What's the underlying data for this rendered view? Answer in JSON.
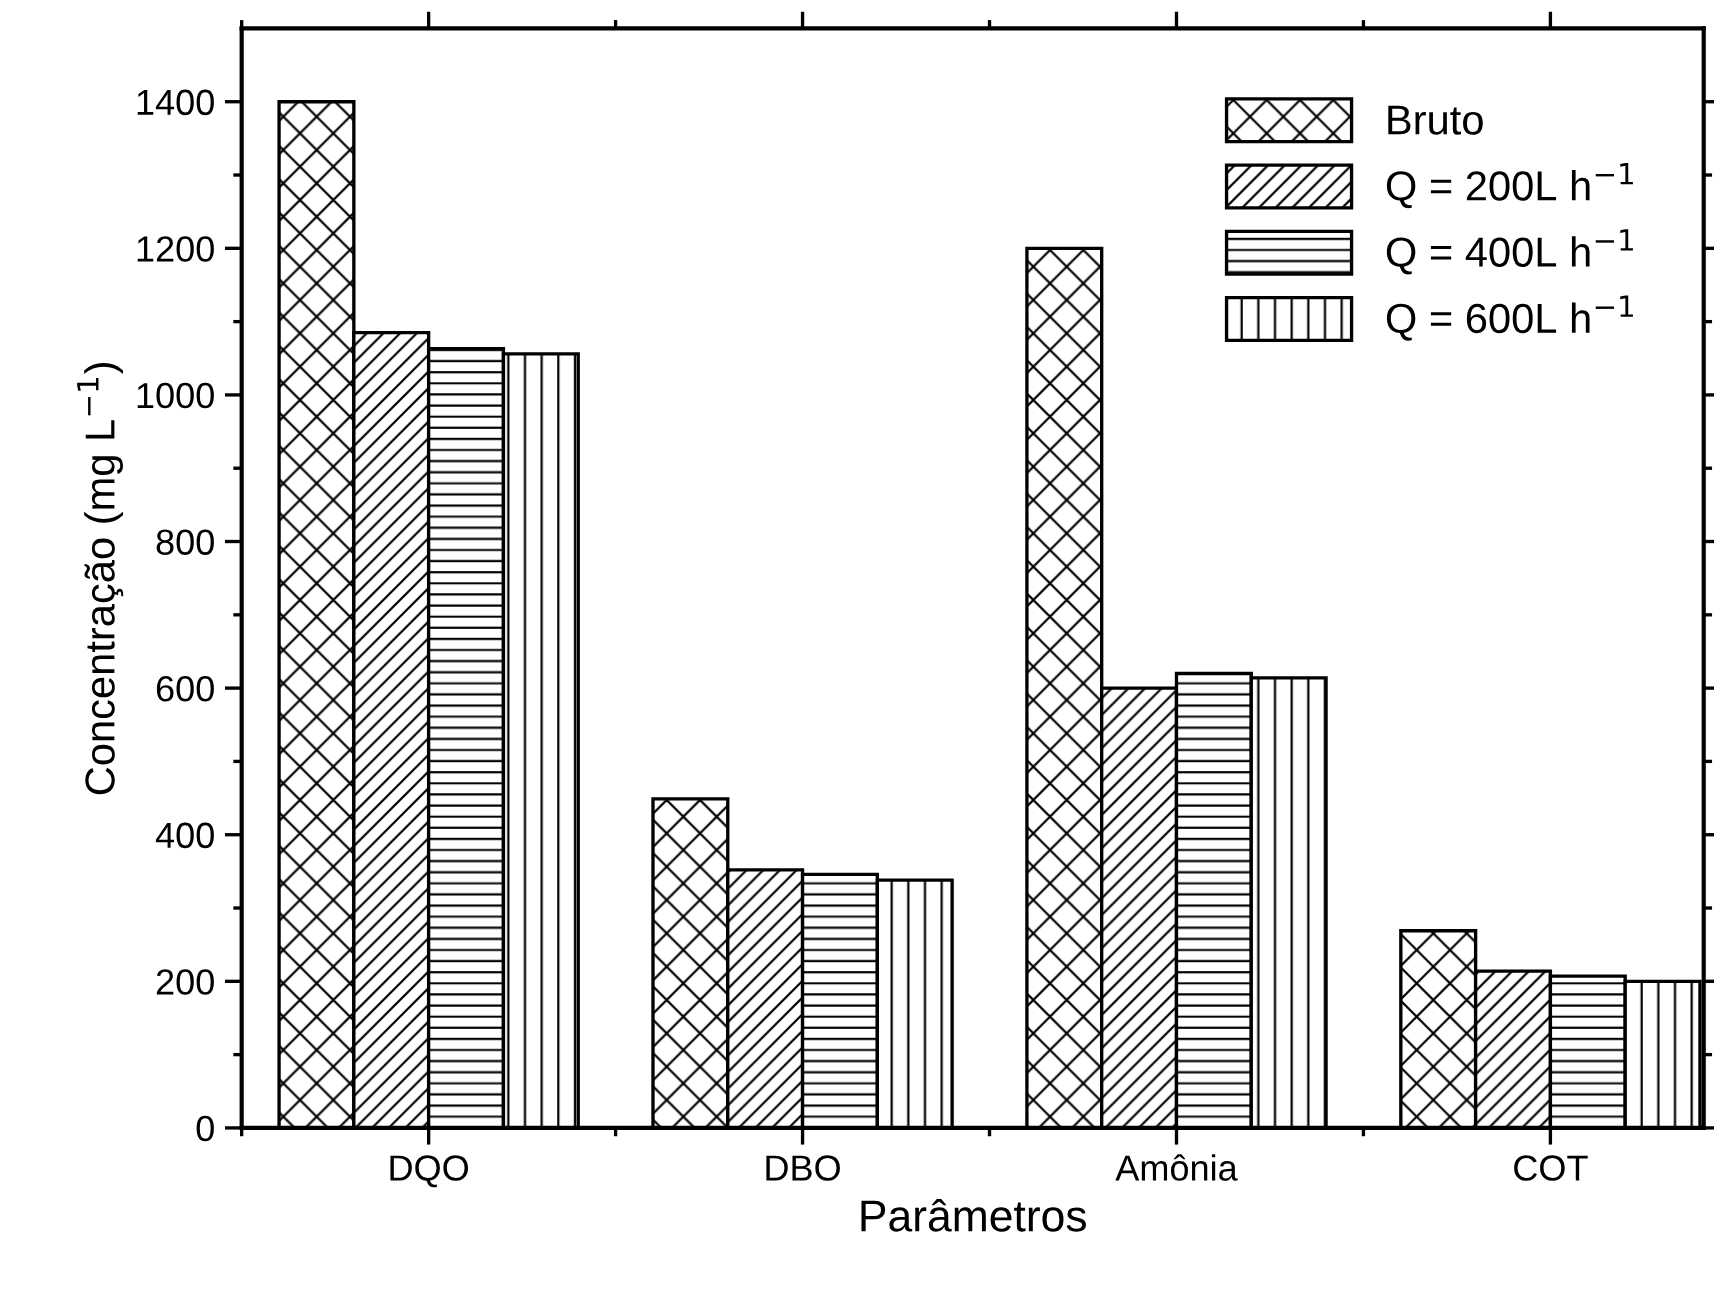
{
  "chart_data": {
    "type": "bar",
    "xlabel": "Parâmetros",
    "ylabel": "Concentração (mg L$^{−1}$)",
    "categories": [
      "DQO",
      "DBO",
      "Amônia",
      "COT"
    ],
    "series": [
      {
        "name": "Bruto",
        "color": "#000000",
        "values": [
          1400,
          449,
          1200,
          269
        ]
      },
      {
        "name": "Q = 200L h$^{−1}$",
        "color": "#000000",
        "values": [
          1085,
          352,
          600,
          214
        ]
      },
      {
        "name": "Q = 400L h$^{−1}$",
        "color": "#000000",
        "values": [
          1063,
          346,
          620,
          207
        ]
      },
      {
        "name": "Q = 600L h$^{−1}$",
        "color": "#000000",
        "values": [
          1056,
          338,
          614,
          200
        ]
      }
    ],
    "ylim": [
      0,
      1500
    ],
    "yticks": [
      0,
      200,
      400,
      600,
      800,
      1000,
      1200,
      1400
    ],
    "grid": false,
    "legend": "top right"
  }
}
